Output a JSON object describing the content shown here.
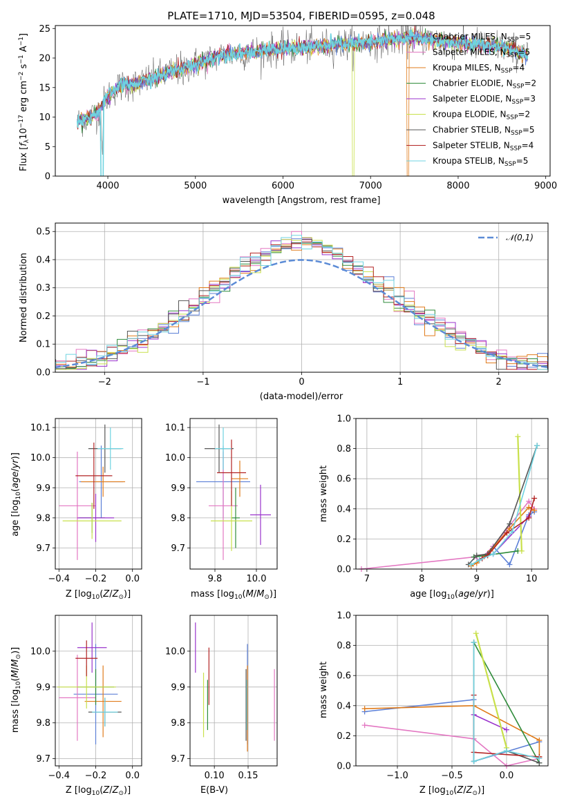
{
  "colors": [
    "#5b7fd6",
    "#e377c2",
    "#e07b1a",
    "#2e8b3a",
    "#9932cc",
    "#c8e04a",
    "#555555",
    "#b22222",
    "#6fd3e0"
  ],
  "chart_data": [
    {
      "id": "spectrum",
      "type": "line",
      "title": "PLATE=1710, MJD=53504, FIBERID=0595, z=0.048",
      "xlabel": "wavelength [Angstrom, rest frame]",
      "ylabel": "Flux [f_λ 10^-17 erg cm^-2 s^-1 A^-1]",
      "xlim": [
        3400,
        9050
      ],
      "ylim": [
        0,
        25.5
      ],
      "xticks": [
        "4000",
        "5000",
        "6000",
        "7000",
        "8000",
        "9000"
      ],
      "yticks": [
        "0",
        "5",
        "10",
        "15",
        "20",
        "25"
      ],
      "legend_position": "top-right",
      "legend": [
        "Chabrier MILES, N_SSP=5",
        "Salpeter MILES, N_SSP=5",
        "Kroupa MILES, N_SSP=4",
        "Chabrier ELODIE, N_SSP=2",
        "Salpeter ELODIE, N_SSP=3",
        "Kroupa ELODIE, N_SSP=2",
        "Chabrier STELIB, N_SSP=5",
        "Salpeter STELIB, N_SSP=4",
        "Kroupa STELIB, N_SSP=5"
      ],
      "continuum": {
        "x": [
          3650,
          3700,
          3800,
          3900,
          4000,
          4100,
          4200,
          4300,
          4500,
          4700,
          5000,
          5300,
          5600,
          6000,
          6400,
          6800,
          7200,
          7500,
          8000,
          8500,
          8800
        ],
        "y": [
          9.0,
          9.5,
          10.0,
          11.0,
          13.5,
          15.0,
          15.5,
          15.5,
          16.5,
          17.5,
          19.0,
          20.5,
          21.0,
          21.5,
          22.0,
          22.5,
          23.0,
          23.5,
          22.5,
          22.0,
          20.5
        ]
      }
    },
    {
      "id": "residuals",
      "type": "line",
      "xlabel": "(data-model)/error",
      "ylabel": "Normed distribution",
      "xlim": [
        -2.5,
        2.5
      ],
      "ylim": [
        0,
        0.53
      ],
      "xticks": [
        "−2",
        "−1",
        "0",
        "1",
        "2"
      ],
      "yticks": [
        "0.0",
        "0.1",
        "0.2",
        "0.3",
        "0.4",
        "0.5"
      ],
      "legend": [
        "𝒩(0,1)"
      ],
      "legend_position": "top-right",
      "grid": true
    },
    {
      "id": "age-vs-z",
      "type": "scatter",
      "xlabel": "Z [log10(Z/Z⊙)]",
      "ylabel": "age [log10(age/yr)]",
      "xlim": [
        -0.42,
        0.05
      ],
      "ylim": [
        9.63,
        10.13
      ],
      "xticks": [
        "−0.4",
        "−0.2",
        "0.0"
      ],
      "yticks": [
        "9.7",
        "9.8",
        "9.9",
        "10.0",
        "10.1"
      ],
      "points": [
        {
          "c": 0,
          "x": -0.17,
          "y": 9.92,
          "ex": 0.12,
          "ey": 0.12
        },
        {
          "c": 1,
          "x": -0.3,
          "y": 9.84,
          "ex": 0.1,
          "ey": 0.18
        },
        {
          "c": 2,
          "x": -0.16,
          "y": 9.92,
          "ex": 0.12,
          "ey": 0.05
        },
        {
          "c": 3,
          "x": -0.22,
          "y": 9.8,
          "ex": 0.07,
          "ey": 0.05
        },
        {
          "c": 4,
          "x": -0.2,
          "y": 9.8,
          "ex": 0.1,
          "ey": 0.08
        },
        {
          "c": 5,
          "x": -0.22,
          "y": 9.79,
          "ex": 0.16,
          "ey": 0.06
        },
        {
          "c": 6,
          "x": -0.15,
          "y": 10.03,
          "ex": 0.09,
          "ey": 0.08
        },
        {
          "c": 7,
          "x": -0.21,
          "y": 9.94,
          "ex": 0.1,
          "ey": 0.11
        },
        {
          "c": 8,
          "x": -0.12,
          "y": 10.03,
          "ex": 0.07,
          "ey": 0.07
        }
      ]
    },
    {
      "id": "age-vs-mass",
      "type": "scatter",
      "xlabel": "mass [log10(M/M⊙)]",
      "ylabel": "",
      "xlim": [
        9.68,
        10.1
      ],
      "ylim": [
        9.63,
        10.13
      ],
      "xticks": [
        "9.8",
        "10.0"
      ],
      "yticks": [
        "9.7",
        "9.8",
        "9.9",
        "10.0",
        "10.1"
      ],
      "points": [
        {
          "c": 0,
          "x": 9.84,
          "y": 9.92,
          "ex": 0.13,
          "ey": 0.12
        },
        {
          "c": 1,
          "x": 9.84,
          "y": 9.84,
          "ex": 0.07,
          "ey": 0.18
        },
        {
          "c": 2,
          "x": 9.92,
          "y": 9.93,
          "ex": 0.04,
          "ey": 0.06
        },
        {
          "c": 3,
          "x": 9.9,
          "y": 9.8,
          "ex": 0.02,
          "ey": 0.1
        },
        {
          "c": 4,
          "x": 10.02,
          "y": 9.81,
          "ex": 0.05,
          "ey": 0.1
        },
        {
          "c": 5,
          "x": 9.88,
          "y": 9.79,
          "ex": 0.1,
          "ey": 0.1
        },
        {
          "c": 6,
          "x": 9.82,
          "y": 10.03,
          "ex": 0.07,
          "ey": 0.08
        },
        {
          "c": 7,
          "x": 9.88,
          "y": 9.95,
          "ex": 0.07,
          "ey": 0.11
        },
        {
          "c": 8,
          "x": 9.84,
          "y": 10.03,
          "ex": 0.04,
          "ey": 0.07
        }
      ]
    },
    {
      "id": "weight-vs-age",
      "type": "line",
      "xlabel": "age [log10(age/yr)]",
      "ylabel": "mass weight",
      "xlim": [
        6.8,
        10.3
      ],
      "ylim": [
        0,
        1.0
      ],
      "xticks": [
        "7",
        "8",
        "9",
        "10"
      ],
      "yticks": [
        "0.0",
        "0.2",
        "0.4",
        "0.6",
        "0.8",
        "1.0"
      ],
      "series": [
        {
          "c": 0,
          "x": [
            8.95,
            9.05,
            9.3,
            9.6,
            9.95,
            10.05
          ],
          "y": [
            0.08,
            0.06,
            0.15,
            0.03,
            0.36,
            0.38
          ]
        },
        {
          "c": 1,
          "x": [
            6.9,
            8.95,
            9.05,
            9.3,
            9.95,
            10.05
          ],
          "y": [
            0.0,
            0.08,
            0.06,
            0.15,
            0.45,
            0.4
          ]
        },
        {
          "c": 2,
          "x": [
            8.9,
            9.0,
            9.25,
            9.6,
            9.95,
            10.05
          ],
          "y": [
            0.02,
            0.04,
            0.12,
            0.27,
            0.41,
            0.39
          ]
        },
        {
          "c": 3,
          "x": [
            8.95,
            9.75
          ],
          "y": [
            0.08,
            0.12
          ]
        },
        {
          "c": 4,
          "x": [
            9.3,
            9.95
          ],
          "y": [
            0.1,
            0.35
          ]
        },
        {
          "c": 5,
          "x": [
            9.75,
            9.82
          ],
          "y": [
            0.88,
            0.12
          ]
        },
        {
          "c": 6,
          "x": [
            8.85,
            9.0,
            9.2,
            9.6,
            10.1
          ],
          "y": [
            0.03,
            0.09,
            0.1,
            0.3,
            0.82
          ]
        },
        {
          "c": 7,
          "x": [
            9.1,
            9.2,
            9.55,
            9.95,
            10.05
          ],
          "y": [
            0.07,
            0.09,
            0.24,
            0.34,
            0.47
          ]
        },
        {
          "c": 8,
          "x": [
            8.9,
            9.05,
            9.3,
            9.65,
            10.1
          ],
          "y": [
            0.03,
            0.06,
            0.1,
            0.25,
            0.82
          ]
        }
      ]
    },
    {
      "id": "mass-vs-z",
      "type": "scatter",
      "xlabel": "Z [log10(Z/Z⊙)]",
      "ylabel": "mass [log10(M/M⊙)]",
      "xlim": [
        -0.42,
        0.05
      ],
      "ylim": [
        9.68,
        10.1
      ],
      "xticks": [
        "−0.4",
        "−0.2",
        "0.0"
      ],
      "yticks": [
        "9.7",
        "9.8",
        "9.9",
        "10.0"
      ],
      "points": [
        {
          "c": 0,
          "x": -0.2,
          "y": 9.88,
          "ex": 0.12,
          "ey": 0.14
        },
        {
          "c": 1,
          "x": -0.3,
          "y": 9.87,
          "ex": 0.1,
          "ey": 0.12
        },
        {
          "c": 2,
          "x": -0.16,
          "y": 9.86,
          "ex": 0.1,
          "ey": 0.1
        },
        {
          "c": 3,
          "x": -0.2,
          "y": 9.9,
          "ex": 0.1,
          "ey": 0.05
        },
        {
          "c": 4,
          "x": -0.22,
          "y": 10.01,
          "ex": 0.08,
          "ey": 0.07
        },
        {
          "c": 5,
          "x": -0.25,
          "y": 9.9,
          "ex": 0.16,
          "ey": 0.06
        },
        {
          "c": 6,
          "x": -0.15,
          "y": 9.83,
          "ex": 0.09,
          "ey": 0.04
        },
        {
          "c": 7,
          "x": -0.25,
          "y": 9.98,
          "ex": 0.06,
          "ey": 0.05
        },
        {
          "c": 8,
          "x": -0.15,
          "y": 9.83,
          "ex": 0.07,
          "ey": 0.04
        }
      ]
    },
    {
      "id": "mass-vs-ebv",
      "type": "scatter",
      "xlabel": "E(B-V)",
      "ylabel": "",
      "xlim": [
        0.064,
        0.193
      ],
      "ylim": [
        9.68,
        10.1
      ],
      "xticks": [
        "0.10",
        "0.15"
      ],
      "yticks": [
        "9.7",
        "9.8",
        "9.9",
        "10.0"
      ],
      "points": [
        {
          "c": 0,
          "x": 0.149,
          "y": 9.88,
          "ex": 0.0,
          "ey": 0.14
        },
        {
          "c": 1,
          "x": 0.189,
          "y": 9.85,
          "ex": 0.0,
          "ey": 0.1
        },
        {
          "c": 2,
          "x": 0.149,
          "y": 9.84,
          "ex": 0.0,
          "ey": 0.12
        },
        {
          "c": 3,
          "x": 0.09,
          "y": 9.85,
          "ex": 0.0,
          "ey": 0.07
        },
        {
          "c": 4,
          "x": 0.072,
          "y": 10.01,
          "ex": 0.0,
          "ey": 0.07
        },
        {
          "c": 5,
          "x": 0.084,
          "y": 9.85,
          "ex": 0.0,
          "ey": 0.09
        },
        {
          "c": 6,
          "x": 0.147,
          "y": 9.85,
          "ex": 0.0,
          "ey": 0.1
        },
        {
          "c": 7,
          "x": 0.092,
          "y": 9.93,
          "ex": 0.0,
          "ey": 0.08
        },
        {
          "c": 8,
          "x": 0.148,
          "y": 9.85,
          "ex": 0.0,
          "ey": 0.07
        }
      ]
    },
    {
      "id": "weight-vs-z",
      "type": "line",
      "xlabel": "Z [log10(Z/Z⊙)]",
      "ylabel": "mass weight",
      "xlim": [
        -1.38,
        0.38
      ],
      "ylim": [
        0,
        1.0
      ],
      "xticks": [
        "−1.0",
        "−0.5",
        "0.0"
      ],
      "yticks": [
        "0.0",
        "0.2",
        "0.4",
        "0.6",
        "0.8",
        "1.0"
      ],
      "series": [
        {
          "c": 0,
          "x": [
            -1.3,
            -0.3,
            -0.3,
            0.3
          ],
          "y": [
            0.36,
            0.44,
            0.03,
            0.16
          ]
        },
        {
          "c": 1,
          "x": [
            -1.3,
            -0.3,
            0.0,
            0.3
          ],
          "y": [
            0.27,
            0.18,
            0.0,
            0.05
          ]
        },
        {
          "c": 2,
          "x": [
            -1.3,
            -0.3,
            0.3,
            0.3
          ],
          "y": [
            0.38,
            0.4,
            0.17,
            0.06
          ]
        },
        {
          "c": 3,
          "x": [
            -0.3,
            0.3
          ],
          "y": [
            0.82,
            0.02
          ]
        },
        {
          "c": 4,
          "x": [
            -0.3,
            0.0
          ],
          "y": [
            0.34,
            0.24
          ]
        },
        {
          "c": 5,
          "x": [
            -0.28,
            0.0
          ],
          "y": [
            0.88,
            0.12
          ]
        },
        {
          "c": 6,
          "x": [
            -0.3,
            -0.3,
            0.0,
            0.3
          ],
          "y": [
            0.82,
            0.03,
            0.1,
            0.02
          ]
        },
        {
          "c": 7,
          "x": [
            -0.3,
            -0.3,
            0.3
          ],
          "y": [
            0.47,
            0.09,
            0.06
          ]
        },
        {
          "c": 8,
          "x": [
            -0.3,
            -0.3,
            0.0,
            0.3
          ],
          "y": [
            0.82,
            0.03,
            0.1,
            0.05
          ]
        }
      ]
    }
  ]
}
